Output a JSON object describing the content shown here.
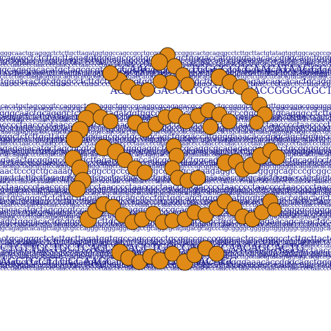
{
  "sequences": {
    "lowercase_a": "gggcaactgcagggctctcttgcttagatggtggccagccgcctgcggccgcccgggcactgcagggcctcttgcttactgtatagtggtggcacgccgcctgctggcagctggggcc",
    "lowercase_b": "caactgcagggctctcttgcttagaggtggcagcgcctgctggcagctgggaccatggggaaacaccgggcagctgggaccctgctcgtgcttcactgtatagtggtggcacgcc",
    "lowercase_c": "ccagctgggacactgcggggcctcttgcttagatggtggccagcgcccgctggcagccgagaacagcacactgcaggcctcttgctaggtggtggctatcccttcttcact",
    "uppercase_a": "CCAACAGCACTGGCGGCCAACATAAGGGAAAACACCCGGAGC",
    "uppercase_b": "AGCTGGGACCATGGGGAAACACCGGGCAGCTGGGACCCTGCCAAGCTG",
    "repeat_a": "ctaacccctaacccctaacccctaacccctaacccctaacccctaacccctaacccctaacccctaacccctaacccctaaccc",
    "repeat_b": "cctaacccctaacccctaacccctaacccctaacccctaacccctaacccctaacccctaacccctaacccctaacccctaaccc",
    "mixed_a": "ggcagagacacatgctagcgcgtccagggctgggaggctggccgcaggcgcagagacgcagccctgcggggcgggggttggggggcgggg",
    "mixed_b": "gccaactcccgctgcaaaggccaggccgccgccgccgcggtcgcagaagaggccgcccggggcagcccgcggccgcagaaggcg",
    "uppercase_c": "CTGTTGCTGCTCAGCCAAGCTGCCCAGGCCAACAGCACTG",
    "uppercase_d": "AGCTGCTTGCCAAGCTGCCCAGGCCAACAGC"
  },
  "colors": {
    "text": "#1a1a8c",
    "bead_fill": "#e08a18",
    "bead_stroke": "#3b2a12",
    "background": "#ffffff"
  }
}
